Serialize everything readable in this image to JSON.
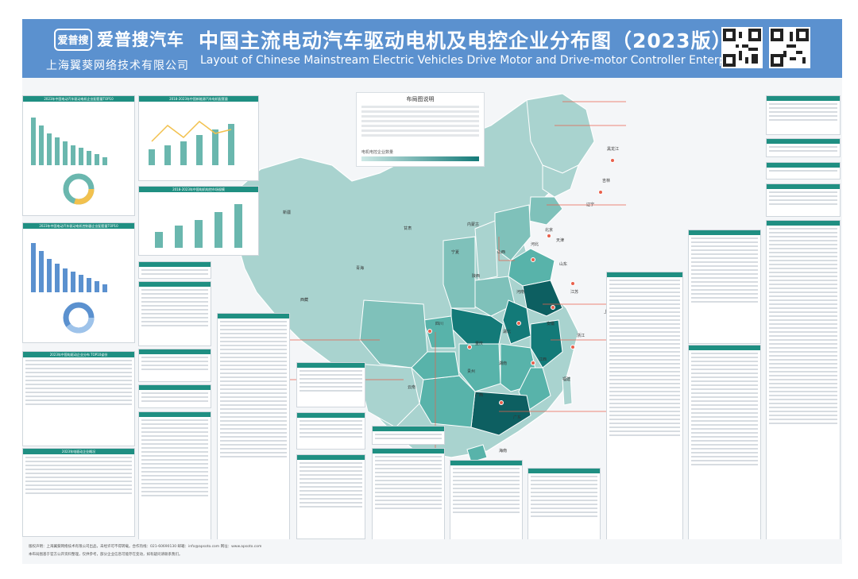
{
  "header": {
    "logo_badge": "爱普搜",
    "logo_name": "爱普搜汽车",
    "company": "上海翼葵网络技术有限公司",
    "title_zh": "中国主流电动汽车驱动电机及电控企业分布图（2023版）",
    "title_en": "Layout of Chinese Mainstream Electric Vehicles  Drive Motor and Drive-motor Controller Enterprises"
  },
  "legend": {
    "title": "布局图说明",
    "range_label": "电机电控企业数量",
    "scale_colors": [
      "#cfe9e6",
      "#137a78"
    ]
  },
  "colors": {
    "header_bg": "#5b91cf",
    "map_base": "#a9d3cf",
    "map_mid": "#58b3aa",
    "map_dark": "#137a78",
    "map_darkest": "#0d5f61",
    "accent": "#e8604c",
    "panel_head": "#1f8f82"
  },
  "provinces": [
    {
      "name": "新疆",
      "level": 0
    },
    {
      "name": "西藏",
      "level": 0
    },
    {
      "name": "青海",
      "level": 0
    },
    {
      "name": "甘肃",
      "level": 0
    },
    {
      "name": "内蒙古",
      "level": 0
    },
    {
      "name": "黑龙江",
      "level": 0
    },
    {
      "name": "吉林",
      "level": 0
    },
    {
      "name": "辽宁",
      "level": 1
    },
    {
      "name": "四川",
      "level": 1
    },
    {
      "name": "云南",
      "level": 0
    },
    {
      "name": "广东",
      "level": 3
    },
    {
      "name": "江苏",
      "level": 3
    },
    {
      "name": "浙江",
      "level": 2
    },
    {
      "name": "安徽",
      "level": 2
    },
    {
      "name": "山东",
      "level": 2
    },
    {
      "name": "湖北",
      "level": 2
    },
    {
      "name": "湖南",
      "level": 2
    },
    {
      "name": "河南",
      "level": 1
    },
    {
      "name": "陕西",
      "level": 1
    },
    {
      "name": "上海",
      "level": 3
    }
  ],
  "map_labels": [
    "新疆",
    "西藏",
    "青海",
    "甘肃",
    "内蒙古",
    "黑龙江",
    "吉林",
    "辽宁",
    "四川",
    "云南",
    "广东",
    "江苏",
    "浙江",
    "安徽",
    "山东",
    "湖北",
    "湖南",
    "河南",
    "陕西",
    "上海",
    "广西",
    "江西",
    "福建",
    "贵州",
    "山西",
    "河北",
    "北京",
    "天津",
    "重庆",
    "宁夏",
    "海南"
  ],
  "left_charts": [
    {
      "caption": "2023年中国电动汽车驱动电机企业配套量TOP10"
    },
    {
      "caption": "2023年中国电动汽车驱动电机控制器企业配套量TOP10"
    },
    {
      "caption": "2023年中国电驱动企业分布 TOP10省份"
    },
    {
      "caption": "2023年电驱动企业概况"
    }
  ],
  "top_charts": [
    {
      "caption": "2018-2023年中国新能源汽车电机配套量"
    },
    {
      "caption": "2018-2023年中国电机电控市场规模"
    }
  ],
  "footer": {
    "line1": "版权声明：上海翼葵网络技术有限公司出品，未经许可不得转载。合作热线：021-60690130  邮箱：info@apsoto.com  网址：www.apsoto.com",
    "line2": "本布局图基于官方公开资料整理，仅供参考，部分企业信息可能存在变动，如有疑问请联系我们。"
  }
}
